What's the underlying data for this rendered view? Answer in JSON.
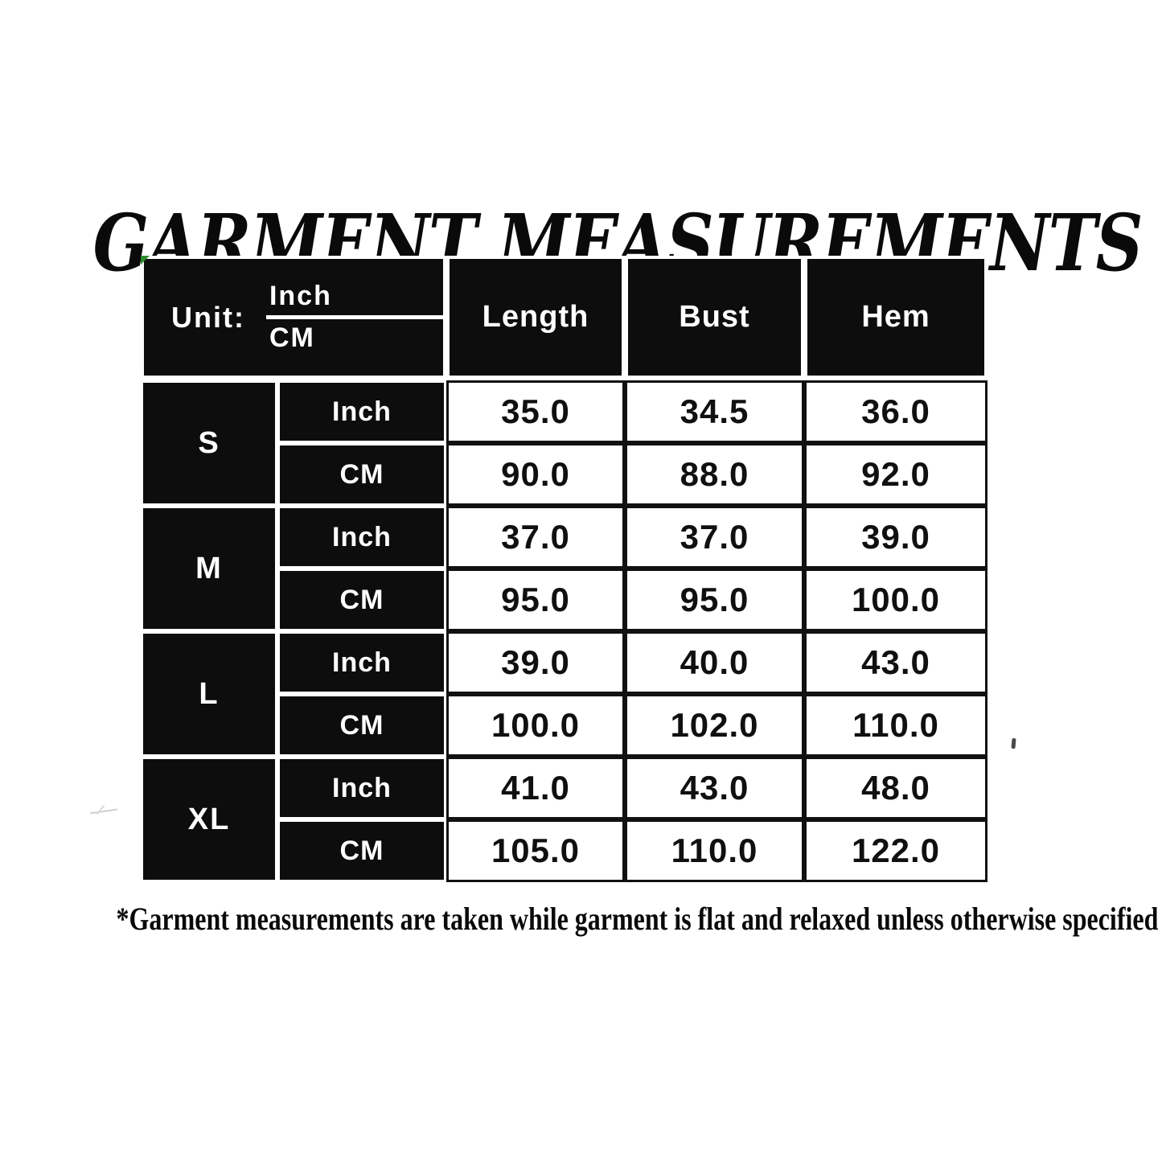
{
  "title": "GARMENT MEASUREMENTS",
  "footnote": "*Garment measurements are taken while garment is flat and relaxed unless otherwise specified",
  "header": {
    "unit_label": "Unit:",
    "unit_top": "Inch",
    "unit_bottom": "CM"
  },
  "colors": {
    "cell_black": "#0d0d0d",
    "line_black": "#111111",
    "background": "#ffffff",
    "corner_mark_green": "#2e8b2e"
  },
  "chart_data": {
    "type": "table",
    "title": "GARMENT MEASUREMENTS",
    "columns": [
      "Length",
      "Bust",
      "Hem"
    ],
    "rows": [
      {
        "size": "S",
        "unit": "Inch",
        "values": [
          "35.0",
          "34.5",
          "36.0"
        ]
      },
      {
        "size": "S",
        "unit": "CM",
        "values": [
          "90.0",
          "88.0",
          "92.0"
        ]
      },
      {
        "size": "M",
        "unit": "Inch",
        "values": [
          "37.0",
          "37.0",
          "39.0"
        ]
      },
      {
        "size": "M",
        "unit": "CM",
        "values": [
          "95.0",
          "95.0",
          "100.0"
        ]
      },
      {
        "size": "L",
        "unit": "Inch",
        "values": [
          "39.0",
          "40.0",
          "43.0"
        ]
      },
      {
        "size": "L",
        "unit": "CM",
        "values": [
          "100.0",
          "102.0",
          "110.0"
        ]
      },
      {
        "size": "XL",
        "unit": "Inch",
        "values": [
          "41.0",
          "43.0",
          "48.0"
        ]
      },
      {
        "size": "XL",
        "unit": "CM",
        "values": [
          "105.0",
          "110.0",
          "122.0"
        ]
      }
    ],
    "footnote": "*Garment measurements are taken while garment is flat and relaxed unless otherwise specified"
  }
}
